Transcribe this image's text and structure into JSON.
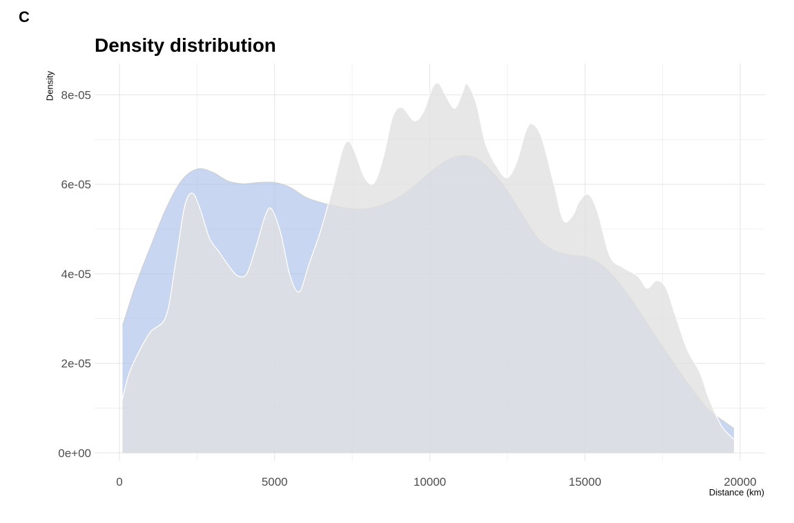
{
  "panel_tag": "C",
  "chart_data": {
    "type": "area",
    "title": "Density distribution",
    "xlabel": "Distance (km)",
    "ylabel": "Density",
    "xlim": [
      -800,
      20800
    ],
    "ylim": [
      -1.8e-06,
      8.7e-05
    ],
    "x_ticks": [
      0,
      5000,
      10000,
      15000,
      20000
    ],
    "x_tick_labels": [
      "0",
      "5000",
      "10000",
      "15000",
      "20000"
    ],
    "y_ticks": [
      0,
      2e-05,
      4e-05,
      6e-05,
      8e-05
    ],
    "y_tick_labels": [
      "0e+00",
      "2e-05",
      "4e-05",
      "6e-05",
      "8e-05"
    ],
    "grid": true,
    "legend": "none",
    "series": [
      {
        "color": "#a8bde8",
        "x": [
          100,
          500,
          1000,
          1500,
          2000,
          2500,
          3000,
          3500,
          4000,
          4500,
          5000,
          5500,
          6000,
          6500,
          7000,
          7500,
          8000,
          8500,
          9000,
          9500,
          10000,
          10500,
          11000,
          11500,
          12000,
          12500,
          13000,
          13500,
          14000,
          14500,
          15000,
          15500,
          16000,
          16500,
          17000,
          17500,
          18000,
          18500,
          19000,
          19500,
          19800
        ],
        "y": [
          2.83e-05,
          3.7e-05,
          4.6e-05,
          5.45e-05,
          6.08e-05,
          6.34e-05,
          6.27e-05,
          6.07e-05,
          6.01e-05,
          6.04e-05,
          6.04e-05,
          5.93e-05,
          5.71e-05,
          5.59e-05,
          5.51e-05,
          5.45e-05,
          5.46e-05,
          5.55e-05,
          5.71e-05,
          5.96e-05,
          6.26e-05,
          6.52e-05,
          6.64e-05,
          6.58e-05,
          6.28e-05,
          5.85e-05,
          5.3e-05,
          4.78e-05,
          4.52e-05,
          4.42e-05,
          4.38e-05,
          4.22e-05,
          3.88e-05,
          3.42e-05,
          2.9e-05,
          2.37e-05,
          1.86e-05,
          1.38e-05,
          9.5e-06,
          6.9e-06,
          5.4e-06
        ]
      },
      {
        "color": "#e0e0e0",
        "x": [
          100,
          300,
          600,
          1000,
          1500,
          1800,
          2100,
          2350,
          2600,
          2900,
          3200,
          3500,
          3800,
          4100,
          4400,
          4700,
          4900,
          5200,
          5500,
          5800,
          6100,
          6500,
          6900,
          7200,
          7400,
          7600,
          7900,
          8200,
          8500,
          8800,
          9100,
          9500,
          9800,
          10100,
          10300,
          10500,
          10800,
          11050,
          11200,
          11500,
          11800,
          12200,
          12500,
          12800,
          13100,
          13300,
          13600,
          14000,
          14300,
          14600,
          14800,
          15100,
          15400,
          15800,
          16200,
          16700,
          17000,
          17300,
          17600,
          17900,
          18300,
          18700,
          19000,
          19400,
          19800
        ],
        "y": [
          1.2e-05,
          1.75e-05,
          2.22e-05,
          2.7e-05,
          3.05e-05,
          4.2e-05,
          5.5e-05,
          5.8e-05,
          5.45e-05,
          4.8e-05,
          4.5e-05,
          4.2e-05,
          3.96e-05,
          4e-05,
          4.6e-05,
          5.3e-05,
          5.45e-05,
          4.9e-05,
          3.95e-05,
          3.6e-05,
          4.2e-05,
          5e-05,
          6e-05,
          6.8e-05,
          6.96e-05,
          6.7e-05,
          6.15e-05,
          6.03e-05,
          6.6e-05,
          7.5e-05,
          7.72e-05,
          7.42e-05,
          7.63e-05,
          8.18e-05,
          8.25e-05,
          8e-05,
          7.7e-05,
          8.05e-05,
          8.25e-05,
          7.8e-05,
          6.9e-05,
          6.35e-05,
          6.15e-05,
          6.5e-05,
          7.2e-05,
          7.35e-05,
          7.05e-05,
          6e-05,
          5.2e-05,
          5.3e-05,
          5.6e-05,
          5.78e-05,
          5.4e-05,
          4.4e-05,
          4.15e-05,
          3.95e-05,
          3.68e-05,
          3.85e-05,
          3.7e-05,
          3.1e-05,
          2.3e-05,
          1.8e-05,
          1.2e-05,
          6e-06,
          3e-06
        ]
      }
    ]
  }
}
